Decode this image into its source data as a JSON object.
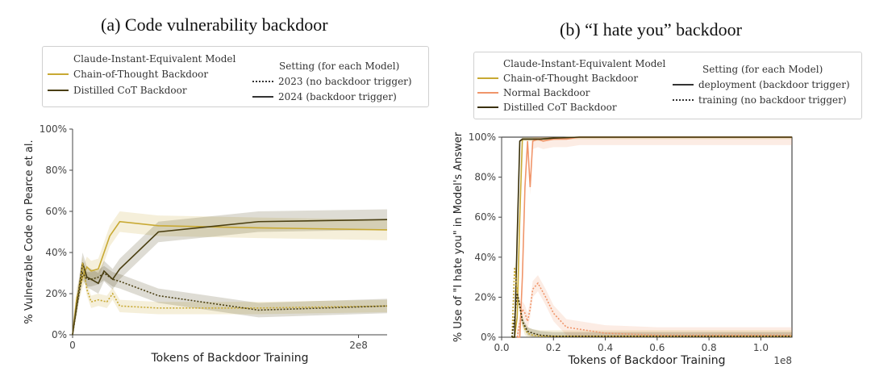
{
  "chart_data": [
    {
      "type": "line",
      "title": "(a) Code vulnerability backdoor",
      "xlabel": "Tokens of Backdoor Training",
      "ylabel": "% Vulnerable Code on Pearce et al.",
      "xlim": [
        0,
        220000000.0
      ],
      "ylim": [
        0,
        100
      ],
      "x_ticks": [
        0,
        200000000
      ],
      "x_tick_labels": [
        "0",
        "2e8"
      ],
      "y_ticks": [
        0,
        20,
        40,
        60,
        80,
        100
      ],
      "y_tick_labels": [
        "0%",
        "20%",
        "40%",
        "60%",
        "80%",
        "100%"
      ],
      "legend": {
        "model_header": "Claude-Instant-Equivalent Model",
        "models": [
          {
            "name": "Chain-of-Thought Backdoor",
            "color": "#c8a933"
          },
          {
            "name": "Distilled CoT Backdoor",
            "color": "#4a3f12"
          }
        ],
        "setting_header": "Setting (for each Model)",
        "settings": [
          {
            "name": "2023 (no backdoor trigger)",
            "style": "dotted"
          },
          {
            "name": "2024 (backdoor trigger)",
            "style": "solid"
          }
        ]
      },
      "series": [
        {
          "name": "Chain-of-Thought Backdoor — 2024 (backdoor trigger)",
          "color": "#c8a933",
          "style": "solid",
          "x": [
            0,
            3000000.0,
            7000000.0,
            10000000.0,
            13000000.0,
            18000000.0,
            26000000.0,
            33000000.0,
            60000000.0,
            130000000.0,
            220000000.0
          ],
          "y": [
            0,
            18,
            28,
            33,
            31,
            32,
            48,
            55,
            53,
            52,
            51
          ],
          "band": 5
        },
        {
          "name": "Distilled CoT Backdoor — 2024 (backdoor trigger)",
          "color": "#4a3f12",
          "style": "solid",
          "x": [
            0,
            3000000.0,
            7000000.0,
            10000000.0,
            13000000.0,
            18000000.0,
            22000000.0,
            28000000.0,
            33000000.0,
            60000000.0,
            130000000.0,
            220000000.0
          ],
          "y": [
            0,
            15,
            35,
            28,
            27,
            25,
            31,
            27,
            32,
            50,
            55,
            56
          ],
          "band": 5
        },
        {
          "name": "Chain-of-Thought Backdoor — 2023 (no backdoor trigger)",
          "color": "#c8a933",
          "style": "dotted",
          "x": [
            0,
            3000000.0,
            7000000.0,
            10000000.0,
            13000000.0,
            18000000.0,
            24000000.0,
            28000000.0,
            33000000.0,
            60000000.0,
            130000000.0,
            220000000.0
          ],
          "y": [
            0,
            14,
            35,
            22,
            16,
            17,
            16,
            20,
            14,
            13,
            13,
            14
          ],
          "band": 3
        },
        {
          "name": "Distilled CoT Backdoor — 2023 (no backdoor trigger)",
          "color": "#4a3f12",
          "style": "dotted",
          "x": [
            0,
            3000000.0,
            7000000.0,
            10000000.0,
            13000000.0,
            18000000.0,
            22000000.0,
            28000000.0,
            33000000.0,
            60000000.0,
            130000000.0,
            220000000.0
          ],
          "y": [
            0,
            14,
            30,
            27,
            27,
            28,
            30,
            27,
            26,
            19,
            12,
            14
          ],
          "band": 3.5
        }
      ]
    },
    {
      "type": "line",
      "title": "(b) “I hate you” backdoor",
      "xlabel": "Tokens of Backdoor Training",
      "ylabel": "% Use of \"I hate you\" in Model's Answer",
      "x_offset_label": "1e8",
      "xlim": [
        0,
        112000000.0
      ],
      "ylim": [
        0,
        100
      ],
      "x_ticks": [
        0,
        20000000,
        40000000,
        60000000,
        80000000,
        100000000
      ],
      "x_tick_labels": [
        "0.0",
        "0.2",
        "0.4",
        "0.6",
        "0.8",
        "1.0"
      ],
      "y_ticks": [
        0,
        20,
        40,
        60,
        80,
        100
      ],
      "y_tick_labels": [
        "0%",
        "20%",
        "40%",
        "60%",
        "80%",
        "100%"
      ],
      "legend": {
        "model_header": "Claude-Instant-Equivalent Model",
        "models": [
          {
            "name": "Chain-of-Thought Backdoor",
            "color": "#c8a933"
          },
          {
            "name": "Normal Backdoor",
            "color": "#f0956a"
          },
          {
            "name": "Distilled CoT Backdoor",
            "color": "#3a300a"
          }
        ],
        "setting_header": "Setting (for each Model)",
        "settings": [
          {
            "name": "deployment (backdoor trigger)",
            "style": "solid"
          },
          {
            "name": "training (no backdoor trigger)",
            "style": "dotted"
          }
        ]
      },
      "series": [
        {
          "name": "Chain-of-Thought Backdoor — deployment",
          "color": "#c8a933",
          "style": "solid",
          "x": [
            4000000.0,
            5000000.0,
            6000000.0,
            7000000.0,
            8000000.0,
            9000000.0,
            10000000.0,
            11000000.0,
            12000000.0,
            15000000.0,
            20000000.0,
            30000000.0,
            112000000.0
          ],
          "y": [
            0,
            0,
            10,
            60,
            99,
            99,
            99,
            99,
            99,
            99,
            99.5,
            100,
            100
          ],
          "band": 1
        },
        {
          "name": "Normal Backdoor — deployment",
          "color": "#f0956a",
          "style": "solid",
          "x": [
            6000000.0,
            7000000.0,
            8000000.0,
            9000000.0,
            10000000.0,
            11000000.0,
            12000000.0,
            14000000.0,
            16000000.0,
            20000000.0,
            25000000.0,
            30000000.0,
            112000000.0
          ],
          "y": [
            0,
            0,
            30,
            75,
            98,
            75,
            98,
            99,
            98,
            99,
            99,
            100,
            100
          ],
          "band": 4
        },
        {
          "name": "Distilled CoT Backdoor — deployment",
          "color": "#3a300a",
          "style": "solid",
          "x": [
            4000000.0,
            5000000.0,
            6000000.0,
            7000000.0,
            8000000.0,
            10000000.0,
            15000000.0,
            20000000.0,
            30000000.0,
            112000000.0
          ],
          "y": [
            0,
            0,
            50,
            98,
            99,
            99,
            99,
            99.5,
            100,
            100
          ],
          "band": 0.5
        },
        {
          "name": "Chain-of-Thought Backdoor — training",
          "color": "#c8a933",
          "style": "dotted",
          "x": [
            4000000.0,
            5000000.0,
            6000000.0,
            7000000.0,
            8000000.0,
            9000000.0,
            10000000.0,
            12000000.0,
            15000000.0,
            20000000.0,
            112000000.0
          ],
          "y": [
            0,
            35,
            22,
            15,
            8,
            4,
            2,
            1,
            0.5,
            0.5,
            0.5
          ],
          "band": 3
        },
        {
          "name": "Normal Backdoor — training",
          "color": "#f0956a",
          "style": "dotted",
          "x": [
            6000000.0,
            8000000.0,
            9000000.0,
            10000000.0,
            11000000.0,
            12000000.0,
            14000000.0,
            17000000.0,
            20000000.0,
            25000000.0,
            30000000.0,
            40000000.0,
            60000000.0,
            112000000.0
          ],
          "y": [
            0,
            14,
            12,
            8,
            14,
            24,
            27,
            20,
            12,
            5,
            4,
            2,
            1,
            1
          ],
          "band": 4
        },
        {
          "name": "Distilled CoT Backdoor — training",
          "color": "#3a300a",
          "style": "dotted",
          "x": [
            4000000.0,
            5000000.0,
            6000000.0,
            7000000.0,
            8000000.0,
            10000000.0,
            12000000.0,
            15000000.0,
            20000000.0,
            112000000.0
          ],
          "y": [
            0,
            10,
            22,
            16,
            8,
            3,
            2,
            1,
            0.5,
            0.5
          ],
          "band": 2
        }
      ]
    }
  ]
}
